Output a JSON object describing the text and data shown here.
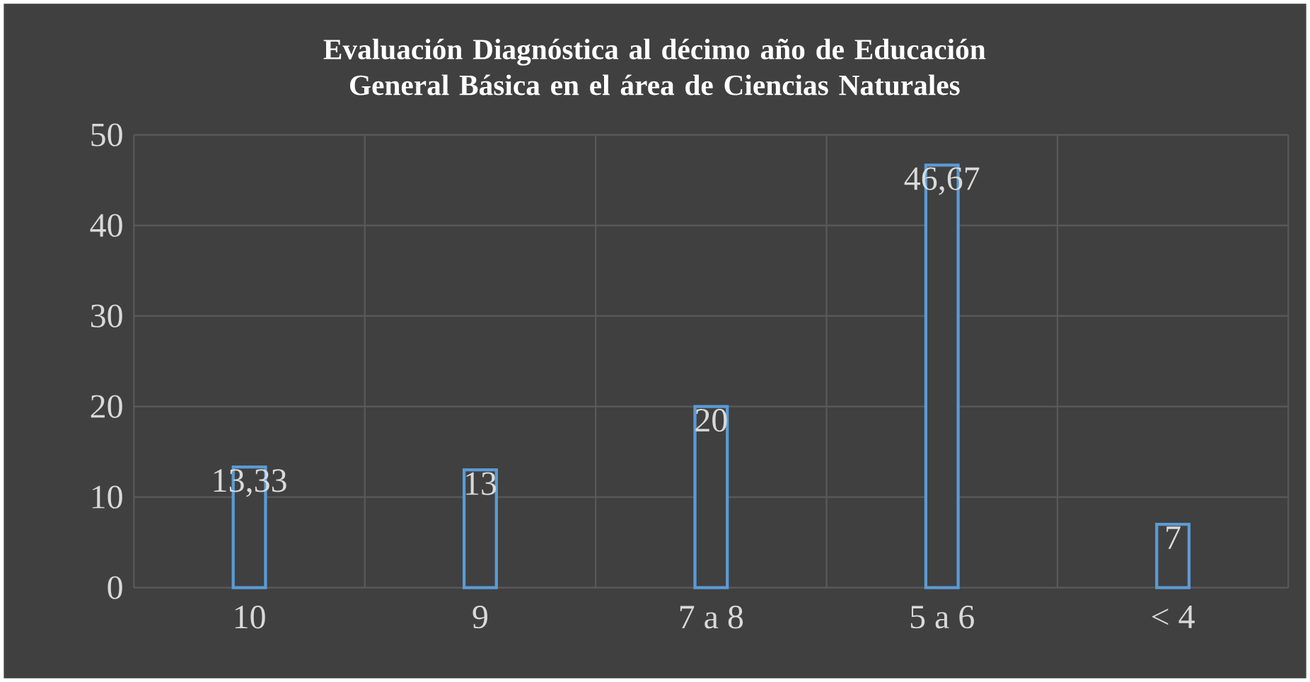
{
  "chart_data": {
    "type": "bar",
    "title": "Evaluación Diagnóstica al décimo año de Educación General Básica en el área de Ciencias Naturales",
    "categories": [
      "10",
      "9",
      "7 a 8",
      "5 a 6",
      "< 4"
    ],
    "values": [
      13.33,
      13,
      20,
      46.67,
      7
    ],
    "value_labels": [
      "13,33",
      "13",
      "20",
      "46,67",
      "7"
    ],
    "color": "#5b9bd5",
    "ylim": [
      0,
      50
    ],
    "yticks": [
      0,
      10,
      20,
      30,
      40,
      50
    ],
    "grid": true
  }
}
